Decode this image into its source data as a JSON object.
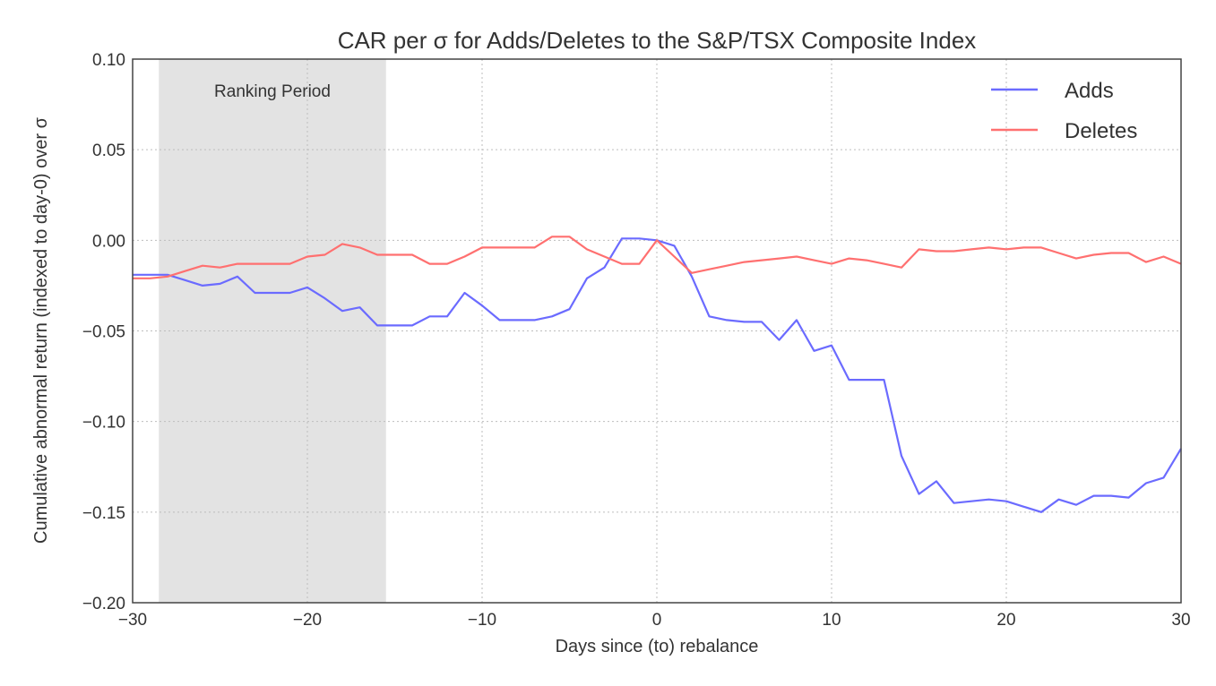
{
  "chart_data": {
    "type": "line",
    "title": "CAR per σ for Adds/Deletes to the S&P/TSX Composite Index",
    "xlabel": "Days since (to) rebalance",
    "ylabel": "Cumulative abnormal return (indexed to day-0) over σ",
    "xlim": [
      -30,
      30
    ],
    "ylim": [
      -0.2,
      0.1
    ],
    "xticks": [
      -30,
      -20,
      -10,
      0,
      10,
      20,
      30
    ],
    "xtick_labels": [
      "−30",
      "−20",
      "−10",
      "0",
      "10",
      "20",
      "30"
    ],
    "yticks": [
      -0.2,
      -0.15,
      -0.1,
      -0.05,
      0.0,
      0.05,
      0.1
    ],
    "ytick_labels": [
      "−0.20",
      "−0.15",
      "−0.10",
      "−0.05",
      "0.00",
      "0.05",
      "0.10"
    ],
    "grid": true,
    "legend_position": "top-right",
    "shaded_region": {
      "x_start": -28.5,
      "x_end": -15.5,
      "label": "Ranking Period",
      "color": "#e3e3e3"
    },
    "x": [
      -30,
      -29,
      -28,
      -27,
      -26,
      -25,
      -24,
      -23,
      -22,
      -21,
      -20,
      -19,
      -18,
      -17,
      -16,
      -15,
      -14,
      -13,
      -12,
      -11,
      -10,
      -9,
      -8,
      -7,
      -6,
      -5,
      -4,
      -3,
      -2,
      -1,
      0,
      1,
      2,
      3,
      4,
      5,
      6,
      7,
      8,
      9,
      10,
      11,
      12,
      13,
      14,
      15,
      16,
      17,
      18,
      19,
      20,
      21,
      22,
      23,
      24,
      25,
      26,
      27,
      28,
      29,
      30
    ],
    "series": [
      {
        "name": "Adds",
        "color": "#6b6bff",
        "values": [
          -0.019,
          -0.019,
          -0.019,
          -0.022,
          -0.025,
          -0.024,
          -0.02,
          -0.029,
          -0.029,
          -0.029,
          -0.026,
          -0.032,
          -0.039,
          -0.037,
          -0.047,
          -0.047,
          -0.047,
          -0.042,
          -0.042,
          -0.029,
          -0.036,
          -0.044,
          -0.044,
          -0.044,
          -0.042,
          -0.038,
          -0.021,
          -0.015,
          0.001,
          0.001,
          0.0,
          -0.003,
          -0.02,
          -0.042,
          -0.044,
          -0.045,
          -0.045,
          -0.055,
          -0.044,
          -0.061,
          -0.058,
          -0.077,
          -0.077,
          -0.077,
          -0.119,
          -0.14,
          -0.133,
          -0.145,
          -0.144,
          -0.143,
          -0.144,
          -0.147,
          -0.15,
          -0.143,
          -0.146,
          -0.141,
          -0.141,
          -0.142,
          -0.134,
          -0.131,
          -0.115
        ]
      },
      {
        "name": "Deletes",
        "color": "#ff7070",
        "values": [
          -0.021,
          -0.021,
          -0.02,
          -0.017,
          -0.014,
          -0.015,
          -0.013,
          -0.013,
          -0.013,
          -0.013,
          -0.009,
          -0.008,
          -0.002,
          -0.004,
          -0.008,
          -0.008,
          -0.008,
          -0.013,
          -0.013,
          -0.009,
          -0.004,
          -0.004,
          -0.004,
          -0.004,
          0.002,
          0.002,
          -0.005,
          -0.009,
          -0.013,
          -0.013,
          0.0,
          -0.009,
          -0.018,
          -0.016,
          -0.014,
          -0.012,
          -0.011,
          -0.01,
          -0.009,
          -0.011,
          -0.013,
          -0.01,
          -0.011,
          -0.013,
          -0.015,
          -0.005,
          -0.006,
          -0.006,
          -0.005,
          -0.004,
          -0.005,
          -0.004,
          -0.004,
          -0.007,
          -0.01,
          -0.008,
          -0.007,
          -0.007,
          -0.012,
          -0.009,
          -0.013
        ]
      }
    ]
  }
}
